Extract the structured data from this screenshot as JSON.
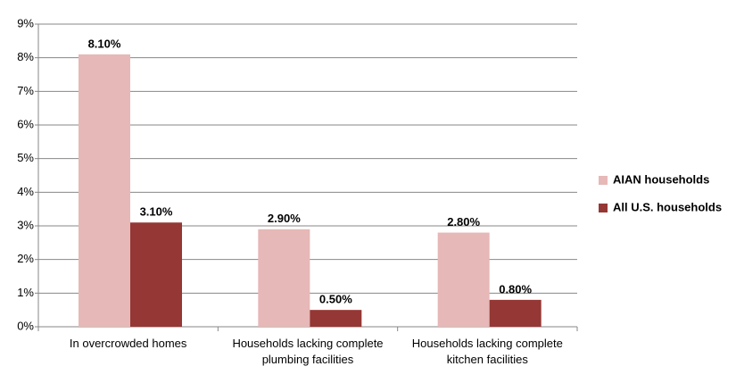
{
  "chart_data": {
    "type": "bar",
    "categories": [
      "In overcrowded homes",
      "Households lacking complete plumbing facilities",
      "Households lacking complete kitchen facilities"
    ],
    "series": [
      {
        "name": "AIAN households",
        "color": "#e6b8b7",
        "values": [
          8.1,
          2.9,
          2.8
        ],
        "value_labels": [
          "8.10%",
          "2.90%",
          "2.80%"
        ]
      },
      {
        "name": "All U.S. households",
        "color": "#953735",
        "values": [
          3.1,
          0.5,
          0.8
        ],
        "value_labels": [
          "3.10%",
          "0.50%",
          "0.80%"
        ]
      }
    ],
    "ylim": [
      0,
      9
    ],
    "yticks": [
      {
        "value": 0,
        "label": "0%"
      },
      {
        "value": 1,
        "label": "1%"
      },
      {
        "value": 2,
        "label": "2%"
      },
      {
        "value": 3,
        "label": "3%"
      },
      {
        "value": 4,
        "label": "4%"
      },
      {
        "value": 5,
        "label": "5%"
      },
      {
        "value": 6,
        "label": "6%"
      },
      {
        "value": 7,
        "label": "7%"
      },
      {
        "value": 8,
        "label": "8%"
      },
      {
        "value": 9,
        "label": "9%"
      }
    ],
    "grid": true,
    "legend": "right"
  }
}
